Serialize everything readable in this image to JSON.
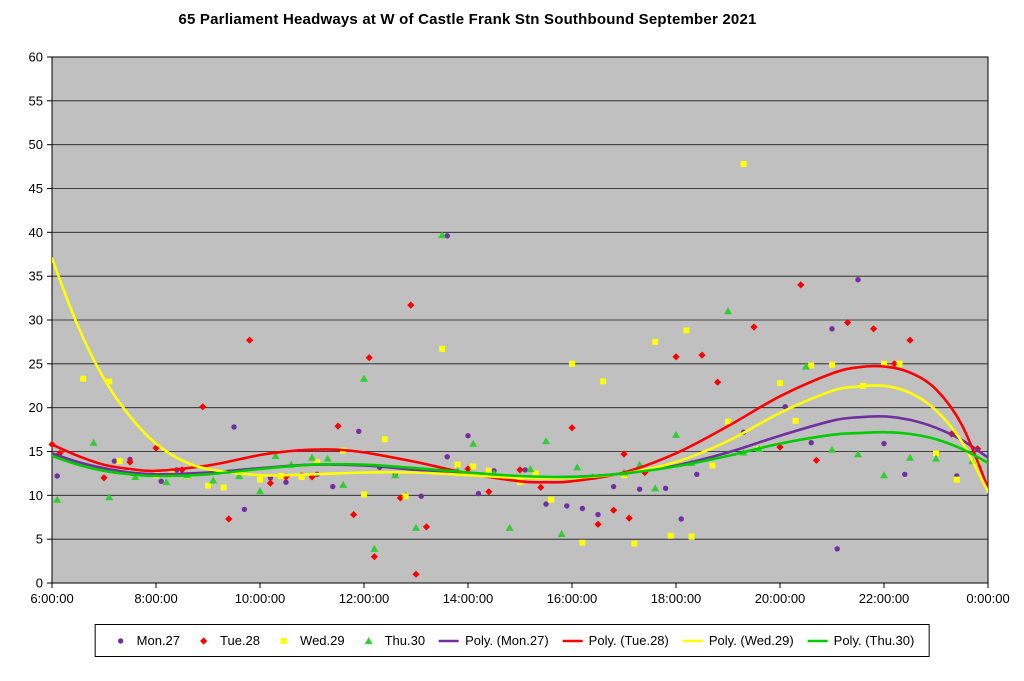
{
  "chart_data": {
    "type": "scatter",
    "title": "65 Parliament Headways at W of Castle Frank Stn Southbound September 2021",
    "plot_bg": "#C0C0C0",
    "grid": "horizontal",
    "legend_position": "bottom",
    "x_axis": {
      "min": 6,
      "max": 24,
      "tick_interval_hours": 2,
      "tick_labels": [
        "6:00:00",
        "8:00:00",
        "10:00:00",
        "12:00:00",
        "14:00:00",
        "16:00:00",
        "18:00:00",
        "20:00:00",
        "22:00:00",
        "0:00:00"
      ]
    },
    "y_axis": {
      "min": 0,
      "max": 60,
      "tick_interval": 5,
      "tick_labels": [
        "0",
        "5",
        "10",
        "15",
        "20",
        "25",
        "30",
        "35",
        "40",
        "45",
        "50",
        "55",
        "60"
      ]
    },
    "series": [
      {
        "name": "Mon.27",
        "marker": "circle",
        "color": "#7030A0",
        "points": [
          [
            6.1,
            12.2
          ],
          [
            7.2,
            13.9
          ],
          [
            7.5,
            14.1
          ],
          [
            8.1,
            11.6
          ],
          [
            8.4,
            12.9
          ],
          [
            9.5,
            17.8
          ],
          [
            9.7,
            8.4
          ],
          [
            10.2,
            12.0
          ],
          [
            10.5,
            11.5
          ],
          [
            10.8,
            12.3
          ],
          [
            11.1,
            12.4
          ],
          [
            11.4,
            11.0
          ],
          [
            11.9,
            17.3
          ],
          [
            12.3,
            13.2
          ],
          [
            12.6,
            12.4
          ],
          [
            12.8,
            10.0
          ],
          [
            13.1,
            9.9
          ],
          [
            13.6,
            14.4
          ],
          [
            13.6,
            39.6
          ],
          [
            14.0,
            16.8
          ],
          [
            14.2,
            10.2
          ],
          [
            14.5,
            12.8
          ],
          [
            15.1,
            12.9
          ],
          [
            15.5,
            9.0
          ],
          [
            15.9,
            8.8
          ],
          [
            16.2,
            8.5
          ],
          [
            16.5,
            7.8
          ],
          [
            16.8,
            11.0
          ],
          [
            17.3,
            10.7
          ],
          [
            17.8,
            10.8
          ],
          [
            18.1,
            7.3
          ],
          [
            18.4,
            12.4
          ],
          [
            19.0,
            18.3
          ],
          [
            19.3,
            17.2
          ],
          [
            20.1,
            20.1
          ],
          [
            20.6,
            16.0
          ],
          [
            21.0,
            29.0
          ],
          [
            21.1,
            3.9
          ],
          [
            21.5,
            34.6
          ],
          [
            22.0,
            15.9
          ],
          [
            22.4,
            12.4
          ],
          [
            23.4,
            12.2
          ]
        ]
      },
      {
        "name": "Tue.28",
        "marker": "diamond",
        "color": "#FF0000",
        "points": [
          [
            6.0,
            15.8
          ],
          [
            6.15,
            14.8
          ],
          [
            7.0,
            12.0
          ],
          [
            7.5,
            13.8
          ],
          [
            8.0,
            15.4
          ],
          [
            8.5,
            12.9
          ],
          [
            8.9,
            20.1
          ],
          [
            9.4,
            7.3
          ],
          [
            9.8,
            27.7
          ],
          [
            10.2,
            11.4
          ],
          [
            10.5,
            12.1
          ],
          [
            11.0,
            12.1
          ],
          [
            11.5,
            17.9
          ],
          [
            11.8,
            7.8
          ],
          [
            12.1,
            25.7
          ],
          [
            12.2,
            3.0
          ],
          [
            12.7,
            9.7
          ],
          [
            12.9,
            31.7
          ],
          [
            13.0,
            1.0
          ],
          [
            13.2,
            6.4
          ],
          [
            14.0,
            13.0
          ],
          [
            14.4,
            10.4
          ],
          [
            15.0,
            12.9
          ],
          [
            15.4,
            10.9
          ],
          [
            16.0,
            17.7
          ],
          [
            16.5,
            6.7
          ],
          [
            16.8,
            8.3
          ],
          [
            17.0,
            14.7
          ],
          [
            17.1,
            7.4
          ],
          [
            17.4,
            12.6
          ],
          [
            18.0,
            25.8
          ],
          [
            18.5,
            26.0
          ],
          [
            18.8,
            22.9
          ],
          [
            19.5,
            29.2
          ],
          [
            20.0,
            15.5
          ],
          [
            20.4,
            34.0
          ],
          [
            20.7,
            14.0
          ],
          [
            21.3,
            29.7
          ],
          [
            21.8,
            29.0
          ],
          [
            22.2,
            25.0
          ],
          [
            22.5,
            27.7
          ],
          [
            23.0,
            14.8
          ],
          [
            23.3,
            17.0
          ],
          [
            23.8,
            15.3
          ]
        ]
      },
      {
        "name": "Wed.29",
        "marker": "square",
        "color": "#FFFF00",
        "points": [
          [
            6.6,
            23.3
          ],
          [
            7.1,
            23.0
          ],
          [
            7.3,
            13.9
          ],
          [
            8.0,
            12.3
          ],
          [
            8.3,
            12.4
          ],
          [
            8.6,
            12.2
          ],
          [
            9.0,
            11.1
          ],
          [
            9.3,
            10.9
          ],
          [
            10.0,
            11.8
          ],
          [
            10.4,
            12.2
          ],
          [
            10.8,
            12.1
          ],
          [
            11.1,
            13.8
          ],
          [
            11.6,
            15.1
          ],
          [
            12.0,
            10.1
          ],
          [
            12.4,
            16.4
          ],
          [
            12.8,
            9.9
          ],
          [
            13.5,
            26.7
          ],
          [
            13.8,
            13.5
          ],
          [
            14.1,
            13.3
          ],
          [
            14.4,
            12.8
          ],
          [
            15.0,
            11.5
          ],
          [
            15.3,
            12.5
          ],
          [
            15.6,
            9.5
          ],
          [
            16.0,
            25.0
          ],
          [
            16.2,
            4.6
          ],
          [
            16.6,
            23.0
          ],
          [
            17.0,
            12.3
          ],
          [
            17.2,
            4.5
          ],
          [
            17.6,
            27.5
          ],
          [
            17.9,
            5.4
          ],
          [
            18.2,
            28.8
          ],
          [
            18.3,
            5.3
          ],
          [
            18.7,
            13.4
          ],
          [
            19.0,
            18.4
          ],
          [
            19.3,
            47.8
          ],
          [
            19.6,
            15.3
          ],
          [
            20.0,
            22.8
          ],
          [
            20.3,
            18.5
          ],
          [
            20.6,
            24.8
          ],
          [
            21.0,
            24.9
          ],
          [
            21.6,
            22.5
          ],
          [
            22.0,
            25.0
          ],
          [
            22.3,
            25.0
          ],
          [
            23.0,
            14.8
          ],
          [
            23.4,
            11.8
          ],
          [
            23.8,
            13.8
          ]
        ]
      },
      {
        "name": "Thu.30",
        "marker": "triangle",
        "color": "#33CC33",
        "points": [
          [
            6.1,
            9.5
          ],
          [
            6.8,
            16.0
          ],
          [
            7.1,
            9.8
          ],
          [
            7.6,
            12.1
          ],
          [
            8.2,
            11.5
          ],
          [
            8.6,
            12.3
          ],
          [
            9.1,
            11.7
          ],
          [
            9.6,
            12.2
          ],
          [
            10.0,
            10.5
          ],
          [
            10.3,
            14.5
          ],
          [
            10.6,
            13.5
          ],
          [
            11.0,
            14.3
          ],
          [
            11.3,
            14.2
          ],
          [
            11.6,
            11.2
          ],
          [
            12.0,
            23.3
          ],
          [
            12.2,
            3.9
          ],
          [
            12.6,
            12.3
          ],
          [
            13.0,
            6.3
          ],
          [
            13.5,
            39.7
          ],
          [
            13.8,
            12.8
          ],
          [
            14.1,
            15.9
          ],
          [
            14.5,
            12.5
          ],
          [
            14.8,
            6.3
          ],
          [
            15.2,
            13.0
          ],
          [
            15.5,
            16.2
          ],
          [
            15.8,
            5.6
          ],
          [
            16.1,
            13.2
          ],
          [
            16.4,
            12.1
          ],
          [
            17.0,
            12.6
          ],
          [
            17.3,
            13.5
          ],
          [
            17.6,
            10.8
          ],
          [
            18.0,
            16.9
          ],
          [
            18.3,
            13.7
          ],
          [
            19.0,
            31.0
          ],
          [
            19.3,
            14.9
          ],
          [
            19.6,
            15.3
          ],
          [
            20.5,
            24.7
          ],
          [
            21.0,
            15.2
          ],
          [
            21.5,
            14.7
          ],
          [
            22.0,
            12.3
          ],
          [
            22.5,
            14.3
          ],
          [
            23.0,
            14.2
          ],
          [
            23.7,
            13.9
          ]
        ]
      }
    ],
    "trendlines": [
      {
        "name": "Poly. (Mon.27)",
        "color": "#7030A0",
        "points": [
          [
            6,
            14.8
          ],
          [
            6.5,
            13.8
          ],
          [
            7,
            13.1
          ],
          [
            7.5,
            12.6
          ],
          [
            8,
            12.4
          ],
          [
            9,
            12.6
          ],
          [
            10,
            13.1
          ],
          [
            11,
            13.5
          ],
          [
            12,
            13.4
          ],
          [
            13,
            12.9
          ],
          [
            14,
            12.4
          ],
          [
            15,
            12.1
          ],
          [
            16,
            12.1
          ],
          [
            17,
            12.5
          ],
          [
            18,
            13.4
          ],
          [
            19,
            14.9
          ],
          [
            20,
            16.8
          ],
          [
            21,
            18.5
          ],
          [
            21.5,
            18.9
          ],
          [
            22,
            19.0
          ],
          [
            22.5,
            18.6
          ],
          [
            23,
            17.7
          ],
          [
            23.5,
            16.3
          ],
          [
            24,
            14.3
          ]
        ]
      },
      {
        "name": "Poly. (Tue.28)",
        "color": "#FF0000",
        "points": [
          [
            6,
            15.8
          ],
          [
            6.5,
            14.5
          ],
          [
            7,
            13.5
          ],
          [
            7.5,
            13.0
          ],
          [
            8,
            12.8
          ],
          [
            9,
            13.4
          ],
          [
            10,
            14.6
          ],
          [
            10.5,
            15.0
          ],
          [
            11,
            15.2
          ],
          [
            11.5,
            15.2
          ],
          [
            12,
            14.9
          ],
          [
            13,
            13.8
          ],
          [
            14,
            12.5
          ],
          [
            15,
            11.6
          ],
          [
            15.5,
            11.5
          ],
          [
            16,
            11.6
          ],
          [
            17,
            12.6
          ],
          [
            18,
            14.8
          ],
          [
            19,
            17.9
          ],
          [
            20,
            21.3
          ],
          [
            21,
            23.9
          ],
          [
            21.5,
            24.6
          ],
          [
            22,
            24.7
          ],
          [
            22.5,
            24.0
          ],
          [
            23,
            22.1
          ],
          [
            23.5,
            18.0
          ],
          [
            24,
            10.8
          ]
        ]
      },
      {
        "name": "Poly. (Wed.29)",
        "color": "#FFFF00",
        "points": [
          [
            6,
            37.0
          ],
          [
            6.5,
            29.3
          ],
          [
            7,
            23.3
          ],
          [
            7.5,
            19.0
          ],
          [
            8,
            15.9
          ],
          [
            8.5,
            14.0
          ],
          [
            9,
            13.0
          ],
          [
            10,
            12.3
          ],
          [
            11,
            12.4
          ],
          [
            12,
            12.6
          ],
          [
            13,
            12.6
          ],
          [
            14,
            12.3
          ],
          [
            15,
            12.0
          ],
          [
            16,
            12.0
          ],
          [
            17,
            12.5
          ],
          [
            18,
            13.8
          ],
          [
            19,
            16.2
          ],
          [
            20,
            19.4
          ],
          [
            21,
            21.9
          ],
          [
            21.5,
            22.4
          ],
          [
            22,
            22.5
          ],
          [
            22.5,
            21.7
          ],
          [
            23,
            19.7
          ],
          [
            23.5,
            16.1
          ],
          [
            24,
            10.4
          ]
        ]
      },
      {
        "name": "Poly. (Thu.30)",
        "color": "#00CC00",
        "points": [
          [
            6,
            14.5
          ],
          [
            6.5,
            13.5
          ],
          [
            7,
            12.8
          ],
          [
            7.5,
            12.4
          ],
          [
            8,
            12.2
          ],
          [
            9,
            12.4
          ],
          [
            10,
            13.0
          ],
          [
            11,
            13.5
          ],
          [
            12,
            13.5
          ],
          [
            13,
            13.1
          ],
          [
            14,
            12.6
          ],
          [
            15,
            12.2
          ],
          [
            16,
            12.1
          ],
          [
            17,
            12.5
          ],
          [
            18,
            13.3
          ],
          [
            19,
            14.5
          ],
          [
            20,
            15.9
          ],
          [
            21,
            16.9
          ],
          [
            21.5,
            17.1
          ],
          [
            22,
            17.2
          ],
          [
            22.5,
            17.0
          ],
          [
            23,
            16.4
          ],
          [
            23.5,
            15.3
          ],
          [
            24,
            13.7
          ]
        ]
      }
    ]
  }
}
